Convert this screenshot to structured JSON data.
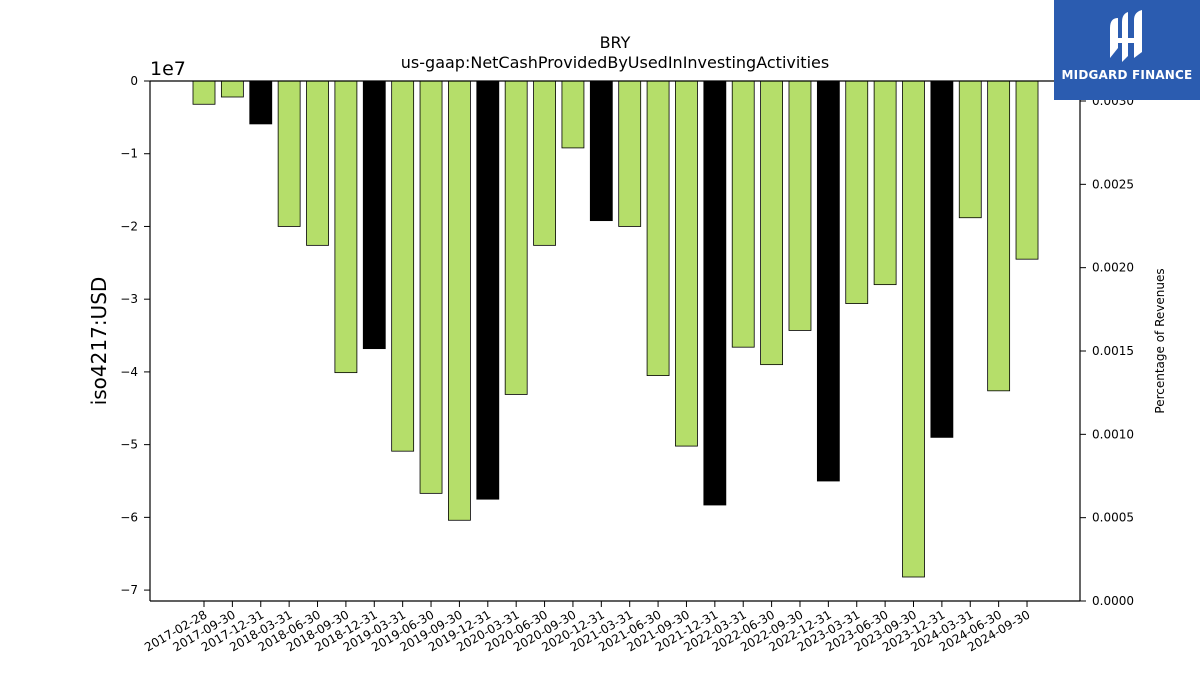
{
  "chart_data": {
    "type": "bar",
    "title": "BRY",
    "subtitle": "us-gaap:NetCashProvidedByUsedInInvestingActivities",
    "ylabel": "iso4217:USD",
    "y2label": "Percentage of Revenues",
    "offset_label": "1e7",
    "ylim": [
      -71500000,
      0
    ],
    "y2lim": [
      0.0,
      0.00312
    ],
    "yticks": [
      0,
      -10000000,
      -20000000,
      -30000000,
      -40000000,
      -50000000,
      -60000000,
      -70000000
    ],
    "ytick_labels": [
      "0",
      "−1",
      "−2",
      "−3",
      "−4",
      "−5",
      "−6",
      "−7"
    ],
    "y2ticks": [
      0.0,
      0.0005,
      0.001,
      0.0015,
      0.002,
      0.0025,
      0.003
    ],
    "y2tick_labels": [
      "0.0000",
      "0.0005",
      "0.0010",
      "0.0015",
      "0.0020",
      "0.0025",
      "0.0030"
    ],
    "categories": [
      "2017-02-28",
      "2017-09-30",
      "2017-12-31",
      "2018-03-31",
      "2018-06-30",
      "2018-09-30",
      "2018-12-31",
      "2019-03-31",
      "2019-06-30",
      "2019-09-30",
      "2019-12-31",
      "2020-03-31",
      "2020-06-30",
      "2020-09-30",
      "2020-12-31",
      "2021-03-31",
      "2021-06-30",
      "2021-09-30",
      "2021-12-31",
      "2022-03-31",
      "2022-06-30",
      "2022-09-30",
      "2022-12-31",
      "2023-03-31",
      "2023-06-30",
      "2023-09-30",
      "2023-12-31",
      "2024-03-31",
      "2024-06-30",
      "2024-09-30"
    ],
    "values": [
      -3200000,
      -2200000,
      -5900000,
      -20000000,
      -22600000,
      -40100000,
      -36800000,
      -50900000,
      -56700000,
      -60400000,
      -57500000,
      -43100000,
      -22600000,
      -9200000,
      -19200000,
      -20000000,
      -40500000,
      -50200000,
      -58300000,
      -36600000,
      -39000000,
      -34300000,
      -55000000,
      -30600000,
      -28000000,
      -68200000,
      -49000000,
      -18800000,
      -42600000,
      -24500000
    ],
    "bar_kind": [
      "q",
      "q",
      "a",
      "q",
      "q",
      "q",
      "a",
      "q",
      "q",
      "q",
      "a",
      "q",
      "q",
      "q",
      "a",
      "q",
      "q",
      "q",
      "a",
      "q",
      "q",
      "q",
      "a",
      "q",
      "q",
      "q",
      "a",
      "q",
      "q",
      "q"
    ],
    "colors": {
      "q": "#b5de6a",
      "a": "#000000",
      "edge": "#000000"
    },
    "grid": false
  },
  "logo": {
    "text": "MIDGARD FINANCE",
    "icon": "midgard-logo-icon",
    "color": "#2b5cb0"
  }
}
